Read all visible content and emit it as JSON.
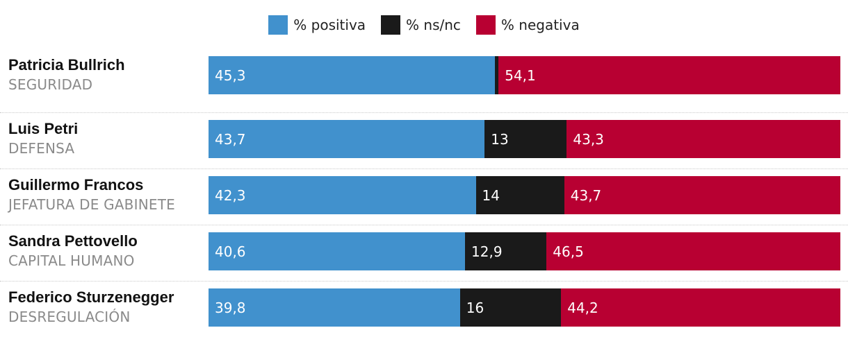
{
  "legend": {
    "positive": "% positiva",
    "nsnc": "% ns/nc",
    "negative": "% negativa"
  },
  "colors": {
    "positive": "#4191cd",
    "nsnc": "#1a1a1a",
    "negative": "#b80032"
  },
  "chart_data": {
    "type": "bar",
    "orientation": "horizontal",
    "stacked": true,
    "categories": [
      "Patricia Bullrich",
      "Luis Petri",
      "Guillermo Francos",
      "Sandra Pettovello",
      "Federico Sturzenegger"
    ],
    "rows": [
      {
        "name": "Patricia Bullrich",
        "ministry": "SEGURIDAD",
        "positive": 45.3,
        "nsnc": 0.6,
        "negative": 54.1,
        "positive_label": "45,3",
        "nsnc_label": "",
        "negative_label": "54,1"
      },
      {
        "name": "Luis Petri",
        "ministry": "DEFENSA",
        "positive": 43.7,
        "nsnc": 13,
        "negative": 43.3,
        "positive_label": "43,7",
        "nsnc_label": "13",
        "negative_label": "43,3"
      },
      {
        "name": "Guillermo Francos",
        "ministry": "JEFATURA DE GABINETE",
        "positive": 42.3,
        "nsnc": 14,
        "negative": 43.7,
        "positive_label": "42,3",
        "nsnc_label": "14",
        "negative_label": "43,7"
      },
      {
        "name": "Sandra Pettovello",
        "ministry": "CAPITAL HUMANO",
        "positive": 40.6,
        "nsnc": 12.9,
        "negative": 46.5,
        "positive_label": "40,6",
        "nsnc_label": "12,9",
        "negative_label": "46,5"
      },
      {
        "name": "Federico Sturzenegger",
        "ministry": "DESREGULACIÓN",
        "positive": 39.8,
        "nsnc": 16,
        "negative": 44.2,
        "positive_label": "39,8",
        "nsnc_label": "16",
        "negative_label": "44,2"
      }
    ],
    "legend_position": "top-center",
    "xlim": [
      0,
      100
    ]
  }
}
